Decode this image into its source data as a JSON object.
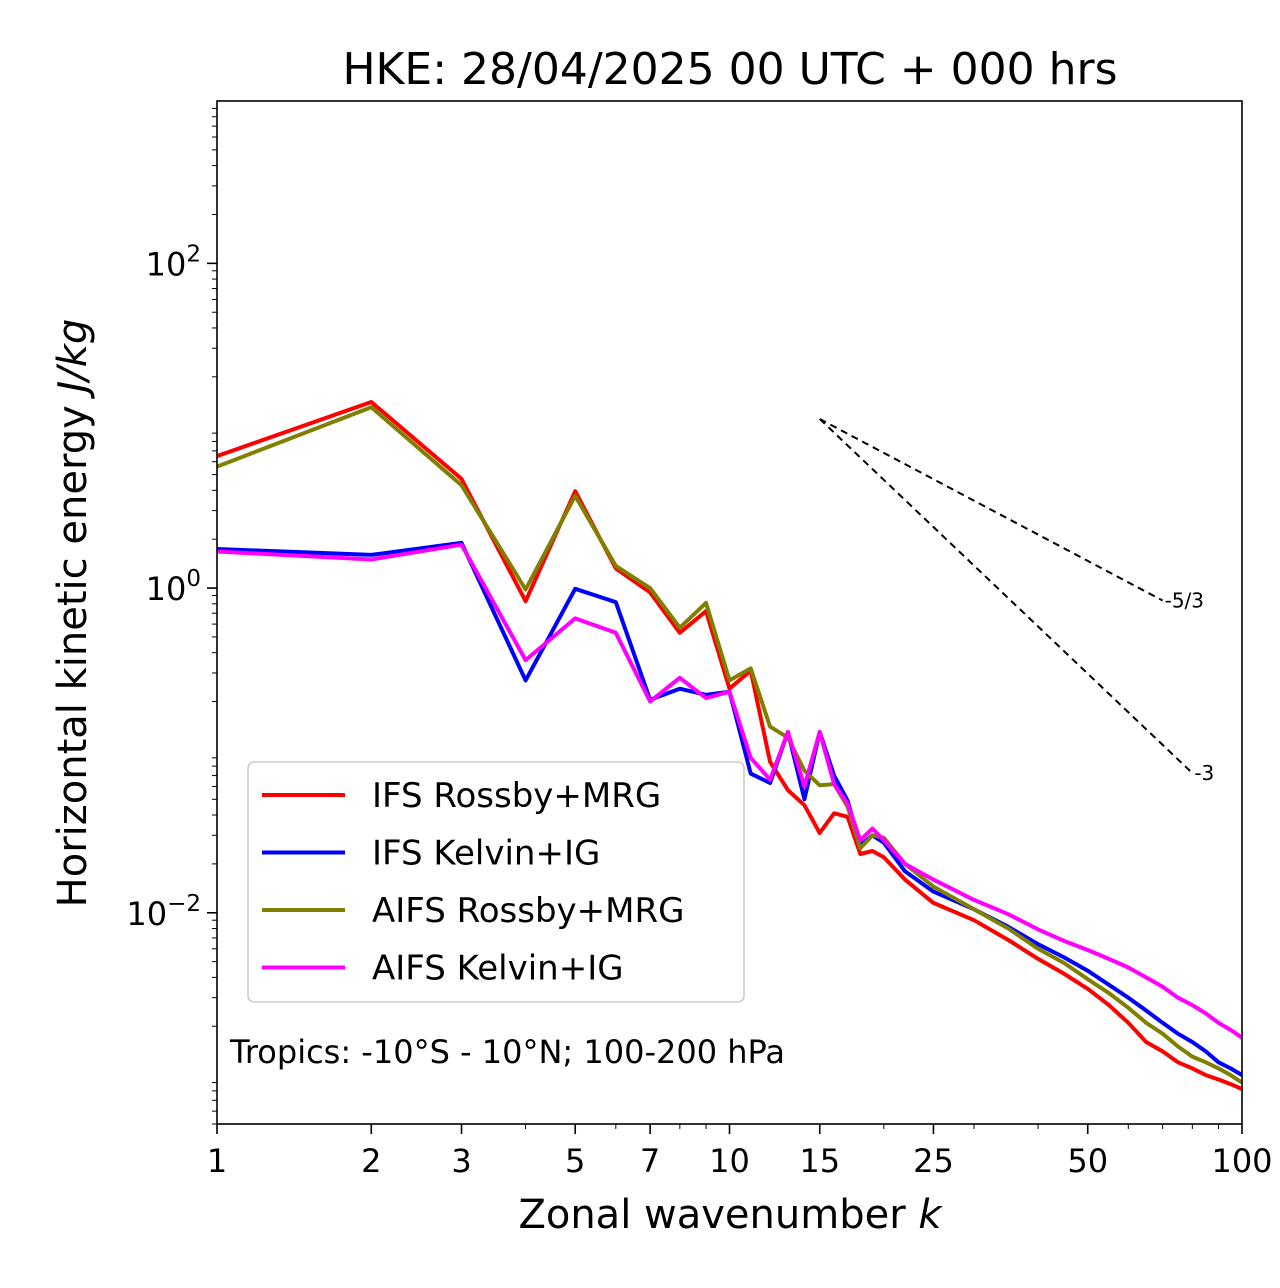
{
  "chart_data": {
    "type": "line",
    "title": "HKE: 28/04/2025 00 UTC + 000 hrs",
    "xlabel": "Zonal wavenumber ",
    "xlabel_var": "k",
    "ylabel": "Horizontal kinetic energy ",
    "ylabel_unit": "J/kg",
    "xscale": "log",
    "yscale": "log",
    "xlim": [
      1,
      100
    ],
    "ylim": [
      0.0005,
      1000
    ],
    "xticks": [
      1,
      2,
      3,
      5,
      7,
      10,
      15,
      25,
      50,
      100
    ],
    "xtick_labels": [
      "1",
      "2",
      "3",
      "5",
      "7",
      "10",
      "15",
      "25",
      "50",
      "100"
    ],
    "yticks": [
      {
        "value": 100,
        "base": "10",
        "exp": "2"
      },
      {
        "value": 1,
        "base": "10",
        "exp": "0"
      },
      {
        "value": 0.01,
        "base": "10",
        "exp": "−2"
      }
    ],
    "annotation": "Tropics: -10°S - 10°N; 100-200 hPa",
    "legend": {
      "placement": "lower-left"
    },
    "reference_lines": [
      {
        "label": "-5/3",
        "x": [
          15,
          70
        ],
        "y": [
          11.0,
          0.838
        ]
      },
      {
        "label": "-3",
        "x": [
          15,
          80
        ],
        "y": [
          11.0,
          0.0725
        ]
      }
    ],
    "series": [
      {
        "name": "IFS Rossby+MRG",
        "color": "#ff0000",
        "x": [
          1,
          2,
          3,
          4,
          5,
          6,
          7,
          8,
          9,
          10,
          11,
          12,
          13,
          14,
          15,
          16,
          17,
          18,
          19,
          20,
          22,
          25,
          30,
          35,
          40,
          45,
          50,
          55,
          60,
          65,
          70,
          75,
          80,
          85,
          90,
          95,
          100
        ],
        "y": [
          6.5,
          14.0,
          4.7,
          0.83,
          3.95,
          1.32,
          0.94,
          0.53,
          0.72,
          0.24,
          0.31,
          0.085,
          0.057,
          0.046,
          0.031,
          0.041,
          0.039,
          0.023,
          0.024,
          0.022,
          0.016,
          0.0115,
          0.009,
          0.0068,
          0.0052,
          0.0042,
          0.0034,
          0.0027,
          0.0021,
          0.0016,
          0.0014,
          0.0012,
          0.0011,
          0.001,
          0.00094,
          0.00088,
          0.00082
        ]
      },
      {
        "name": "IFS Kelvin+IG",
        "color": "#0000ff",
        "x": [
          1,
          2,
          3,
          4,
          5,
          6,
          7,
          8,
          9,
          10,
          11,
          12,
          13,
          14,
          15,
          16,
          17,
          18,
          19,
          20,
          22,
          25,
          30,
          35,
          40,
          45,
          50,
          55,
          60,
          65,
          70,
          75,
          80,
          85,
          90,
          95,
          100
        ],
        "y": [
          1.74,
          1.6,
          1.9,
          0.27,
          0.99,
          0.82,
          0.205,
          0.24,
          0.22,
          0.23,
          0.072,
          0.063,
          0.13,
          0.05,
          0.13,
          0.07,
          0.049,
          0.026,
          0.03,
          0.027,
          0.018,
          0.0135,
          0.0105,
          0.0082,
          0.0064,
          0.0053,
          0.0044,
          0.0036,
          0.003,
          0.0025,
          0.0021,
          0.0018,
          0.0016,
          0.0014,
          0.0012,
          0.0011,
          0.001
        ]
      },
      {
        "name": "AIFS Rossby+MRG",
        "color": "#808000",
        "x": [
          1,
          2,
          3,
          4,
          5,
          6,
          7,
          8,
          9,
          10,
          11,
          12,
          13,
          14,
          15,
          16,
          17,
          18,
          19,
          20,
          22,
          25,
          30,
          35,
          40,
          45,
          50,
          55,
          60,
          65,
          70,
          75,
          80,
          85,
          90,
          95,
          100
        ],
        "y": [
          5.6,
          13.0,
          4.3,
          0.98,
          3.7,
          1.37,
          1.0,
          0.57,
          0.81,
          0.27,
          0.32,
          0.14,
          0.12,
          0.075,
          0.061,
          0.062,
          0.045,
          0.025,
          0.03,
          0.029,
          0.02,
          0.0145,
          0.0105,
          0.008,
          0.006,
          0.0049,
          0.0039,
          0.0032,
          0.0026,
          0.0021,
          0.0018,
          0.0015,
          0.0013,
          0.0012,
          0.0011,
          0.001,
          0.0009
        ]
      },
      {
        "name": "AIFS Kelvin+IG",
        "color": "#ff00ff",
        "x": [
          1,
          2,
          3,
          4,
          5,
          6,
          7,
          8,
          9,
          10,
          11,
          12,
          13,
          14,
          15,
          16,
          17,
          18,
          19,
          20,
          22,
          25,
          30,
          35,
          40,
          45,
          50,
          55,
          60,
          65,
          70,
          75,
          80,
          85,
          90,
          95,
          100
        ],
        "y": [
          1.68,
          1.5,
          1.85,
          0.36,
          0.65,
          0.53,
          0.2,
          0.28,
          0.21,
          0.23,
          0.09,
          0.066,
          0.13,
          0.06,
          0.13,
          0.062,
          0.047,
          0.028,
          0.033,
          0.028,
          0.02,
          0.016,
          0.012,
          0.0098,
          0.0079,
          0.0067,
          0.0059,
          0.0052,
          0.0046,
          0.004,
          0.0035,
          0.003,
          0.0027,
          0.0024,
          0.0021,
          0.0019,
          0.0017
        ]
      }
    ]
  }
}
